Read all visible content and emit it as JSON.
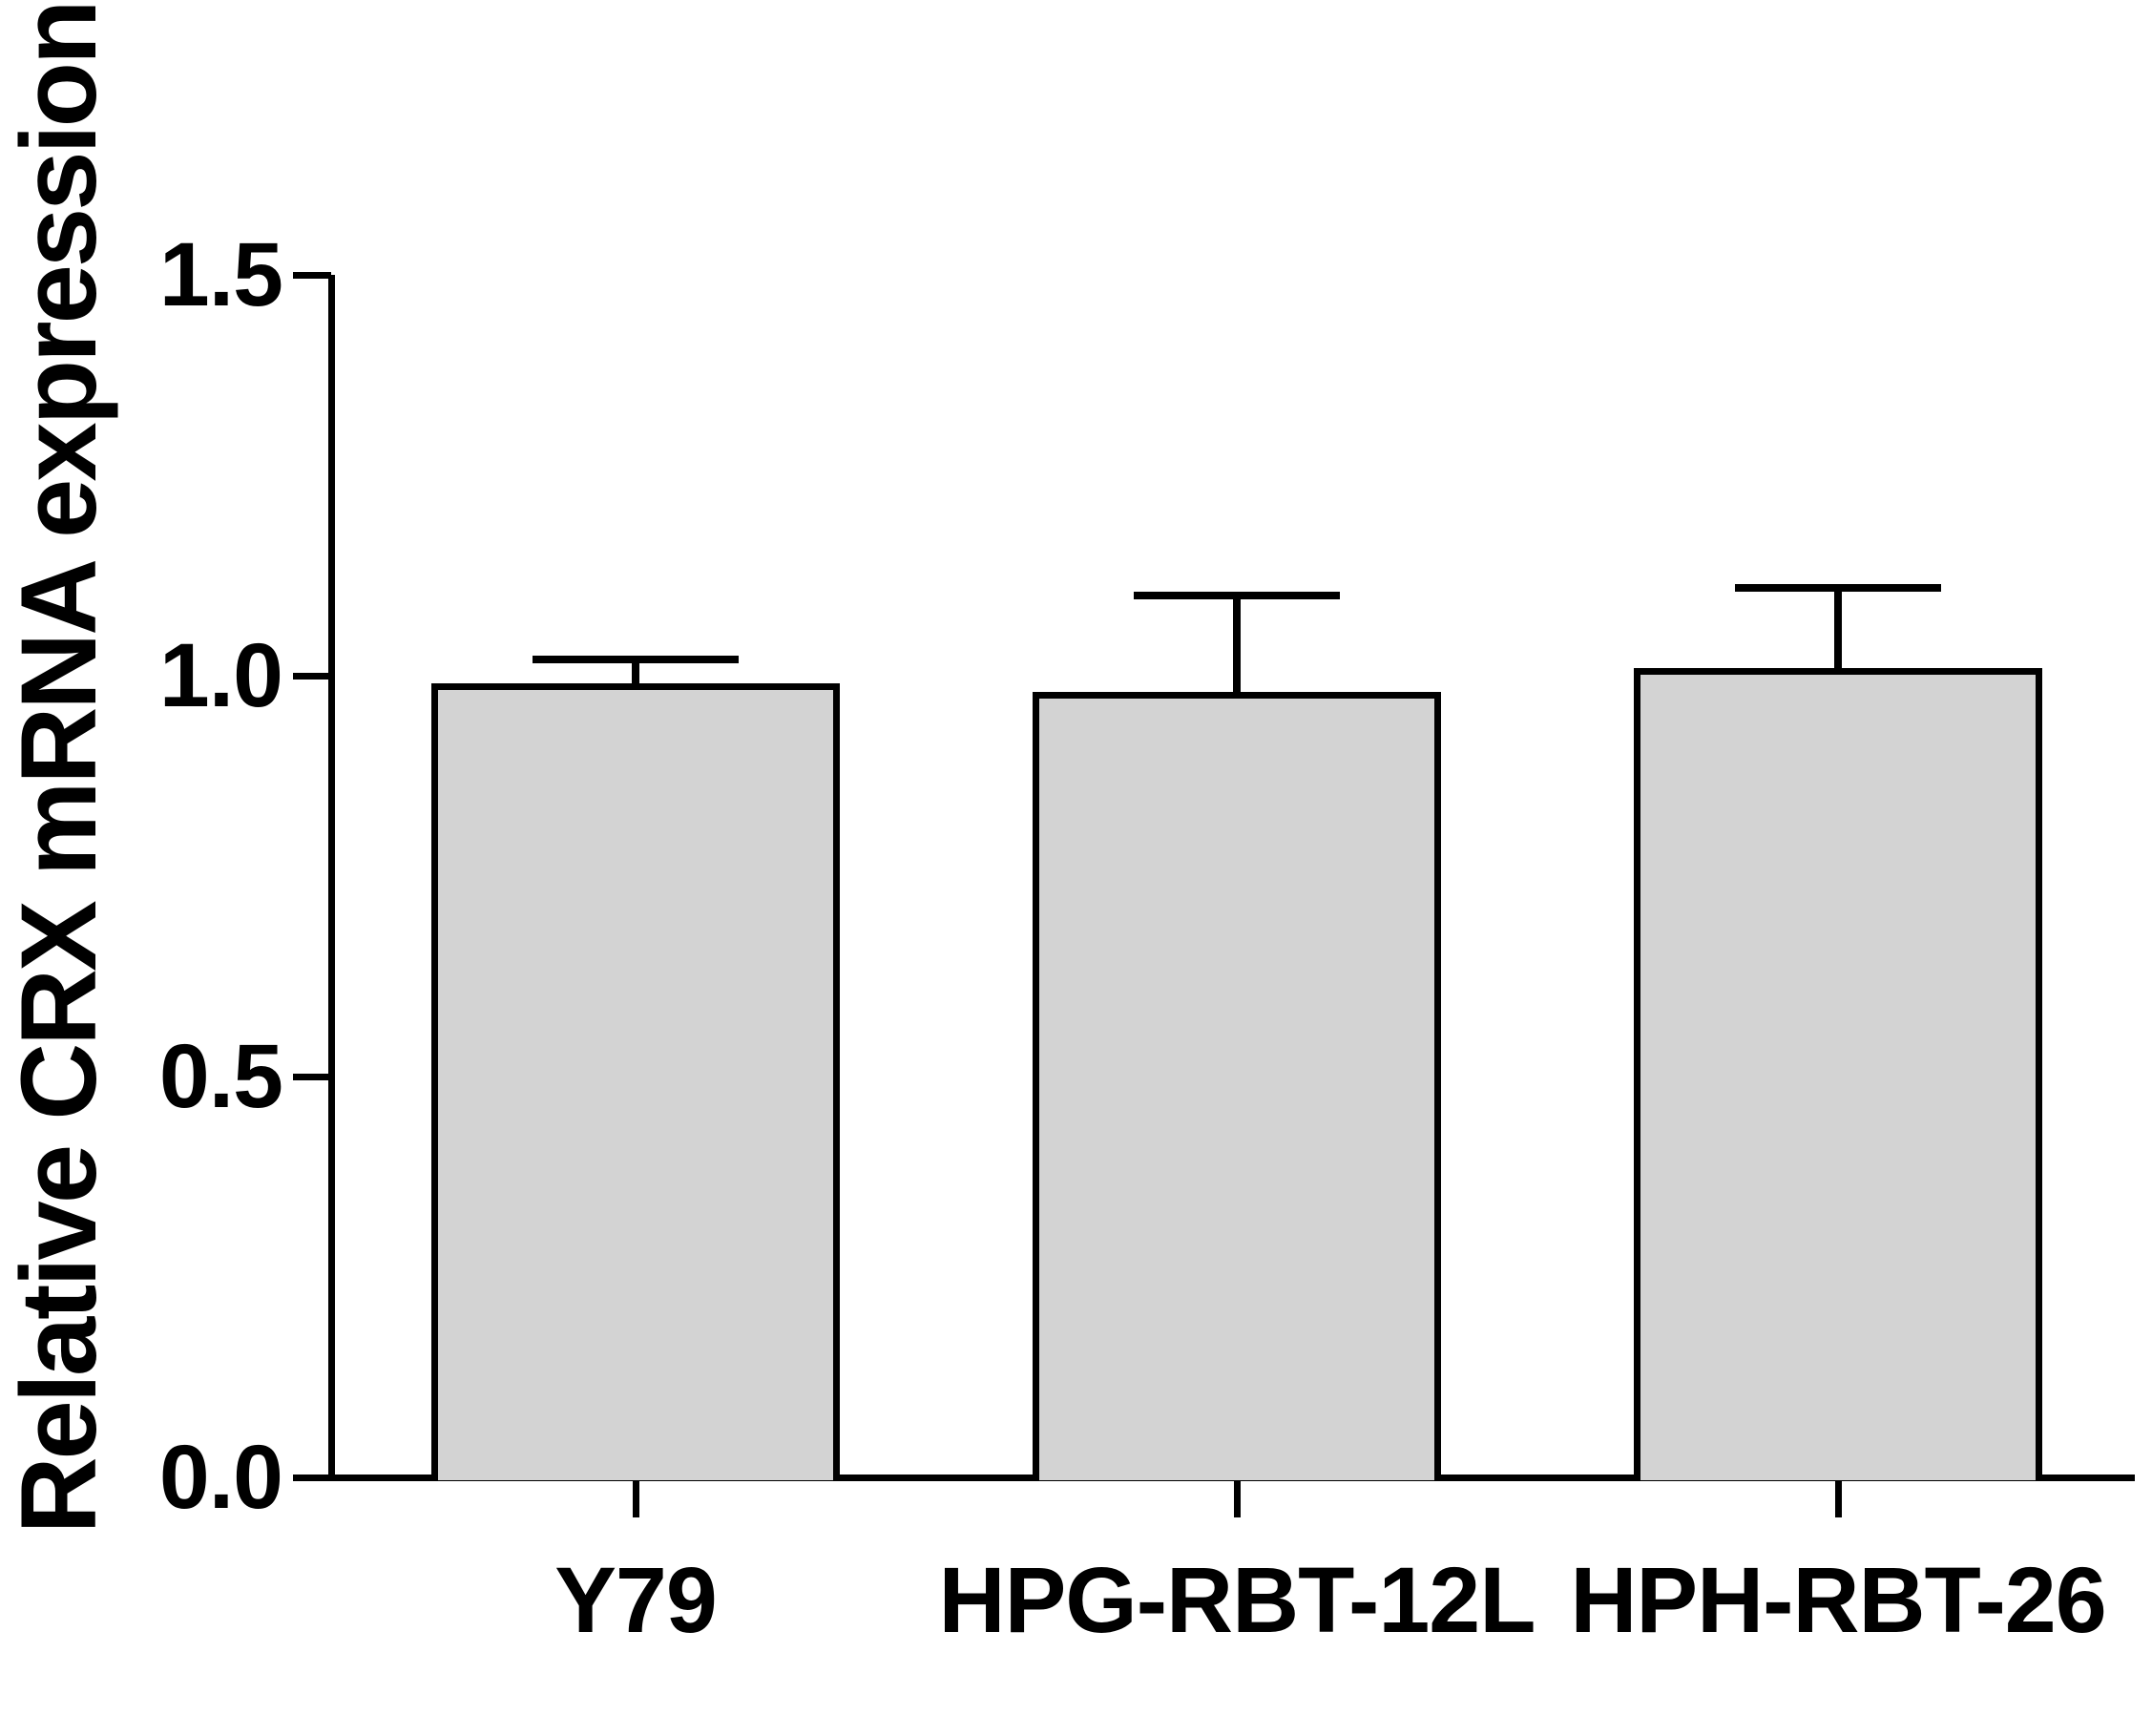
{
  "chart_data": {
    "type": "bar",
    "title": "",
    "xlabel": "",
    "ylabel": "Relative CRX mRNA expression",
    "categories": [
      "Y79",
      "HPG-RBT-12L",
      "HPH-RBT-26"
    ],
    "values": [
      0.99,
      0.98,
      1.01
    ],
    "errors_plus": [
      0.03,
      0.12,
      0.1
    ],
    "error_bar_style": "upper-cap-only",
    "ytick_labels": [
      "0.0",
      "0.5",
      "1.0",
      "1.5"
    ],
    "ytick_values": [
      0.0,
      0.5,
      1.0,
      1.5
    ],
    "ylim": [
      0,
      1.5
    ],
    "grid": false,
    "legend": "none",
    "bar_fill_color": "#d3d3d3",
    "bar_stroke_color": "#000000",
    "axis_color": "#000000",
    "text_color": "#000000",
    "background_color": "#ffffff"
  }
}
